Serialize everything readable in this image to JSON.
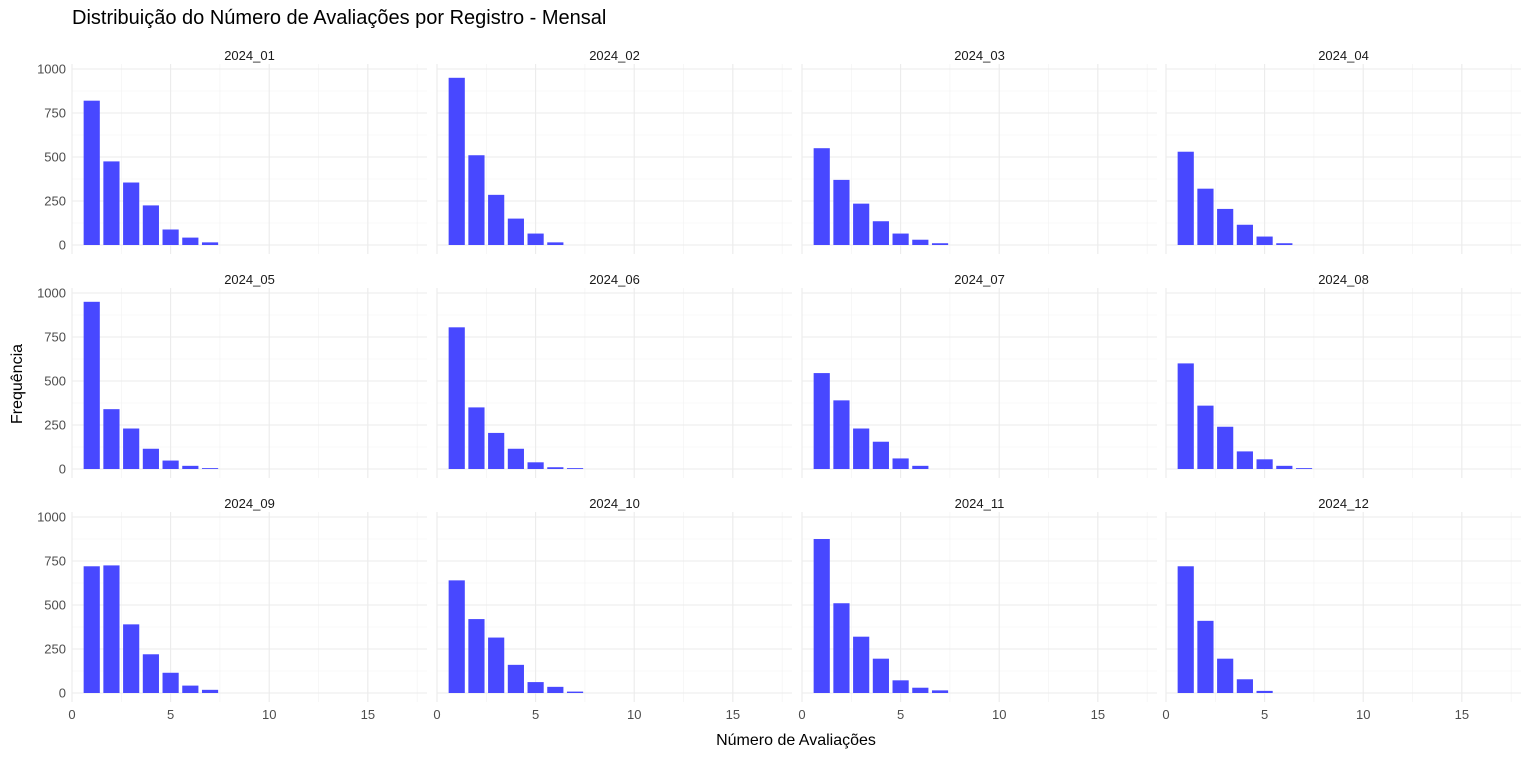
{
  "chart_data": {
    "type": "bar",
    "title": "Distribuição do Número de Avaliações por Registro - Mensal",
    "xlabel": "Número de Avaliações",
    "ylabel": "Frequência",
    "xlim": [
      0,
      18
    ],
    "ylim": [
      0,
      1000
    ],
    "x_ticks": [
      0,
      5,
      10,
      15
    ],
    "y_ticks": [
      0,
      250,
      500,
      750,
      1000
    ],
    "grid": true,
    "bar_color": "#4848ff",
    "x": [
      1,
      2,
      3,
      4,
      5,
      6,
      7,
      8
    ],
    "panels": [
      {
        "name": "2024_01",
        "values": [
          820,
          475,
          355,
          225,
          88,
          42,
          15,
          0
        ]
      },
      {
        "name": "2024_02",
        "values": [
          950,
          510,
          285,
          150,
          65,
          15,
          0,
          0
        ]
      },
      {
        "name": "2024_03",
        "values": [
          550,
          370,
          235,
          135,
          65,
          30,
          10,
          0
        ]
      },
      {
        "name": "2024_04",
        "values": [
          530,
          320,
          205,
          115,
          48,
          10,
          0,
          0
        ]
      },
      {
        "name": "2024_05",
        "values": [
          950,
          340,
          230,
          115,
          48,
          18,
          5,
          0
        ]
      },
      {
        "name": "2024_06",
        "values": [
          805,
          350,
          205,
          115,
          38,
          10,
          5,
          0
        ]
      },
      {
        "name": "2024_07",
        "values": [
          545,
          390,
          230,
          155,
          60,
          18,
          0,
          0
        ]
      },
      {
        "name": "2024_08",
        "values": [
          600,
          360,
          240,
          100,
          55,
          18,
          5,
          0
        ]
      },
      {
        "name": "2024_09",
        "values": [
          720,
          725,
          390,
          220,
          115,
          42,
          18,
          0
        ]
      },
      {
        "name": "2024_10",
        "values": [
          640,
          420,
          315,
          160,
          62,
          35,
          8,
          0
        ]
      },
      {
        "name": "2024_11",
        "values": [
          875,
          510,
          320,
          195,
          72,
          30,
          15,
          0
        ]
      },
      {
        "name": "2024_12",
        "values": [
          720,
          410,
          195,
          78,
          12,
          0,
          0,
          0
        ]
      }
    ]
  }
}
